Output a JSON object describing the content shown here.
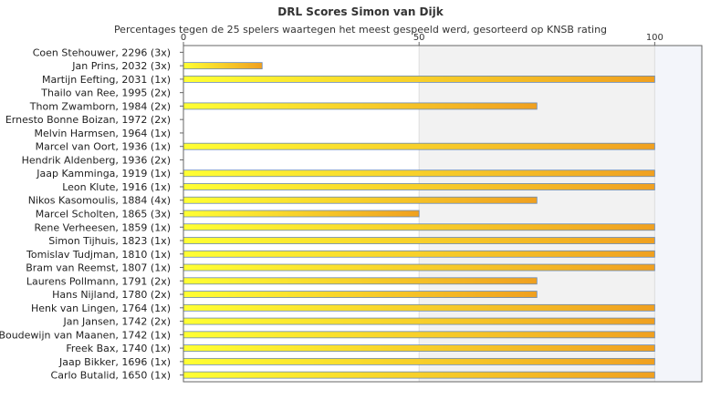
{
  "chart_data": {
    "type": "bar",
    "orientation": "horizontal",
    "title": "DRL Scores Simon van Dijk",
    "subtitle": "Percentages tegen de 25 spelers waartegen het meest gespeeld werd, gesorteerd op KNSB rating",
    "categories": [
      "Coen Stehouwer, 2296 (3x)",
      "Jan Prins, 2032 (3x)",
      "Martijn Eefting, 2031 (1x)",
      "Thailo van Ree, 1995 (2x)",
      "Thom Zwamborn, 1984 (2x)",
      "Ernesto Bonne Boizan, 1972 (2x)",
      "Melvin Harmsen, 1964 (1x)",
      "Marcel van Oort, 1936 (1x)",
      "Hendrik Aldenberg, 1936 (2x)",
      "Jaap Kamminga, 1919 (1x)",
      "Leon Klute, 1916 (1x)",
      "Nikos Kasomoulis, 1884 (4x)",
      "Marcel Scholten, 1865 (3x)",
      "Rene Verheesen, 1859 (1x)",
      "Simon Tijhuis, 1823 (1x)",
      "Tomislav Tudjman, 1810 (1x)",
      "Bram van Reemst, 1807 (1x)",
      "Laurens Pollmann, 1791 (2x)",
      "Hans Nijland, 1780 (2x)",
      "Henk van Lingen, 1764 (1x)",
      "Jan Jansen, 1742 (2x)",
      "Boudewijn van Maanen, 1742 (1x)",
      "Freek Bax, 1740 (1x)",
      "Jaap Bikker, 1696 (1x)",
      "Carlo Butalid, 1650 (1x)"
    ],
    "values": [
      0,
      16.7,
      100,
      0,
      75,
      0,
      0,
      100,
      0,
      100,
      100,
      75,
      50,
      100,
      100,
      100,
      100,
      75,
      75,
      100,
      100,
      100,
      100,
      100,
      100
    ],
    "xlim": [
      0,
      110
    ],
    "xticks": [
      "0",
      "50",
      "100"
    ],
    "xlabel": "",
    "ylabel": "",
    "grid": true,
    "legend": "none",
    "colors": {
      "bar_start": "#ffff33",
      "bar_end": "#f0a020",
      "bar_border": "#6a8ab5",
      "band": "#f2f2f2",
      "band_right": "#f3f5fa",
      "axis": "#666666",
      "grid": "#dddddd"
    }
  }
}
